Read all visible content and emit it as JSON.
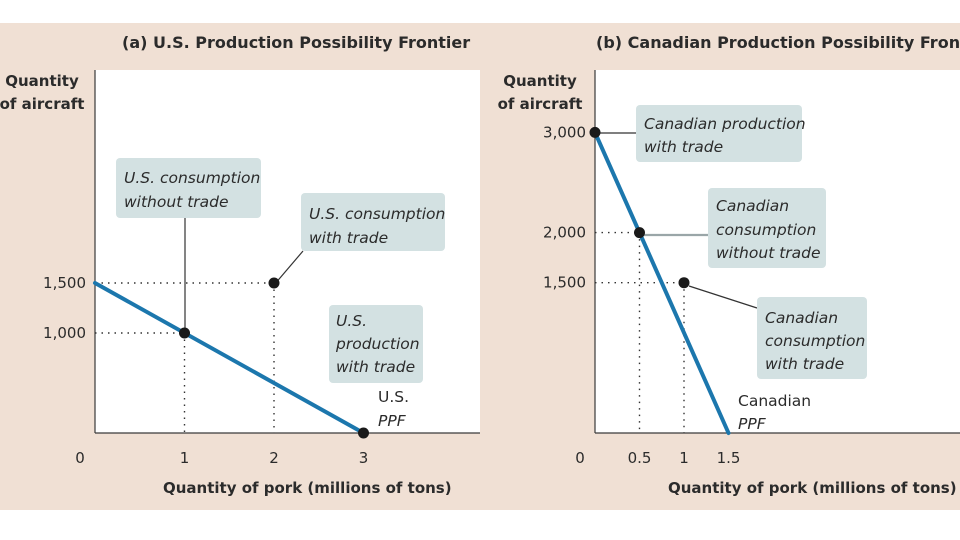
{
  "chart_data": [
    {
      "type": "line",
      "title": "(a) U.S. Production Possibility Frontier",
      "ylabel": [
        "Quantity",
        "of aircraft"
      ],
      "xlabel": "Quantity of pork (millions of tons)",
      "origin_label": "0",
      "xlim": [
        0,
        3.7
      ],
      "ylim": [
        0,
        2200
      ],
      "x_ticks": [
        {
          "value": 1,
          "label": "1"
        },
        {
          "value": 2,
          "label": "2"
        },
        {
          "value": 3,
          "label": "3"
        }
      ],
      "y_ticks": [
        {
          "value": 1000,
          "label": "1,000"
        },
        {
          "value": 1500,
          "label": "1,500"
        }
      ],
      "ppf": {
        "x": [
          0,
          3
        ],
        "y": [
          1500,
          0
        ],
        "label_country": "U.S.",
        "label_ppf": "PPF"
      },
      "points": [
        {
          "name": "us-consumption-without-trade",
          "x": 1,
          "y": 1000,
          "label": [
            "U.S. consumption",
            "without trade"
          ],
          "guide_x": true,
          "guide_y": true
        },
        {
          "name": "us-consumption-with-trade",
          "x": 2,
          "y": 1500,
          "label": [
            "U.S. consumption",
            "with trade"
          ],
          "guide_x": true,
          "guide_y": true
        },
        {
          "name": "us-production-with-trade",
          "x": 3,
          "y": 0,
          "label": [
            "U.S.",
            "production",
            "with trade"
          ],
          "guide_x": false,
          "guide_y": false
        }
      ],
      "grid": false
    },
    {
      "type": "line",
      "title": "(b) Canadian Production Possibility Frontier",
      "ylabel": [
        "Quantity",
        "of aircraft"
      ],
      "xlabel": "Quantity of pork (millions of tons)",
      "origin_label": "0",
      "xlim": [
        0,
        3.7
      ],
      "ylim": [
        0,
        3300
      ],
      "x_ticks": [
        {
          "value": 0.5,
          "label": "0.5"
        },
        {
          "value": 1,
          "label": "1"
        },
        {
          "value": 1.5,
          "label": "1.5"
        }
      ],
      "y_ticks": [
        {
          "value": 1500,
          "label": "1,500"
        },
        {
          "value": 2000,
          "label": "2,000"
        },
        {
          "value": 3000,
          "label": "3,000"
        }
      ],
      "ppf": {
        "x": [
          0,
          1.5
        ],
        "y": [
          3000,
          0
        ],
        "label_country": "Canadian",
        "label_ppf": "PPF"
      },
      "points": [
        {
          "name": "canadian-production-with-trade",
          "x": 0,
          "y": 3000,
          "label": [
            "Canadian production",
            "with trade"
          ],
          "guide_x": false,
          "guide_y": false
        },
        {
          "name": "canadian-consumption-without-trade",
          "x": 0.5,
          "y": 2000,
          "label": [
            "Canadian",
            "consumption",
            "without trade"
          ],
          "guide_x": true,
          "guide_y": true
        },
        {
          "name": "canadian-consumption-with-trade",
          "x": 1,
          "y": 1500,
          "label": [
            "Canadian",
            "consumption",
            "with trade"
          ],
          "guide_x": true,
          "guide_y": true
        }
      ],
      "grid": false
    }
  ],
  "colors": {
    "background": "#f0e0d4",
    "plot": "#ffffff",
    "ppf_line": "#1c77ad",
    "callout": "#d3e1e2",
    "point": "#1a1a1a"
  }
}
